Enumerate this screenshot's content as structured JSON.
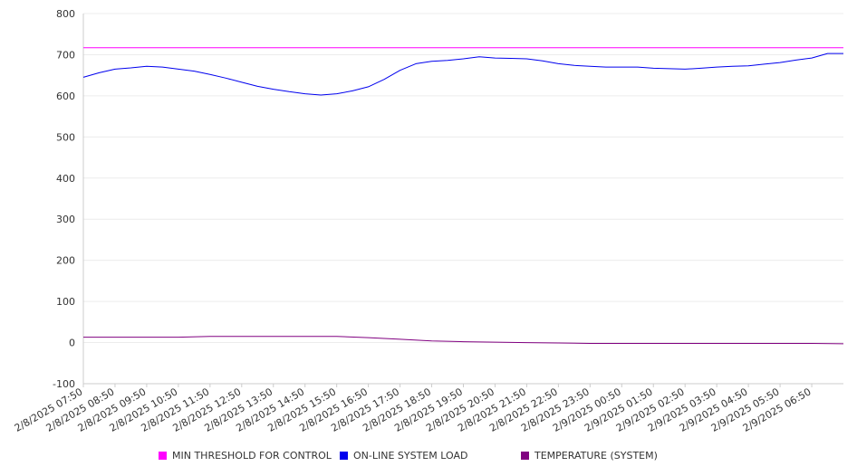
{
  "chart_data": {
    "type": "line",
    "title": "",
    "xlabel": "",
    "ylabel": "",
    "ylim": [
      -100,
      800
    ],
    "yticks": [
      -100,
      0,
      100,
      200,
      300,
      400,
      500,
      600,
      700,
      800
    ],
    "xtick_labels": [
      "2/8/2025 07:50",
      "2/8/2025 08:50",
      "2/8/2025 09:50",
      "2/8/2025 10:50",
      "2/8/2025 11:50",
      "2/8/2025 12:50",
      "2/8/2025 13:50",
      "2/8/2025 14:50",
      "2/8/2025 15:50",
      "2/8/2025 16:50",
      "2/8/2025 17:50",
      "2/8/2025 18:50",
      "2/8/2025 19:50",
      "2/8/2025 20:50",
      "2/8/2025 21:50",
      "2/8/2025 22:50",
      "2/8/2025 23:50",
      "2/9/2025 00:50",
      "2/9/2025 01:50",
      "2/9/2025 02:50",
      "2/9/2025 03:50",
      "2/9/2025 04:50",
      "2/9/2025 05:50",
      "2/9/2025 06:50"
    ],
    "x_end": "2/9/2025 07:50",
    "grid": true,
    "legend_position": "bottom",
    "series": [
      {
        "name": "MIN THRESHOLD FOR CONTROL",
        "color": "#ff00ff",
        "x": [
          "2/8/2025 07:50",
          "2/9/2025 07:50"
        ],
        "values": [
          717,
          717
        ]
      },
      {
        "name": "ON-LINE SYSTEM LOAD",
        "color": "#0000ee",
        "x": [
          "2/8/2025 07:50",
          "2/8/2025 08:20",
          "2/8/2025 08:50",
          "2/8/2025 09:20",
          "2/8/2025 09:50",
          "2/8/2025 10:20",
          "2/8/2025 10:50",
          "2/8/2025 11:20",
          "2/8/2025 11:50",
          "2/8/2025 12:20",
          "2/8/2025 12:50",
          "2/8/2025 13:20",
          "2/8/2025 13:50",
          "2/8/2025 14:20",
          "2/8/2025 14:50",
          "2/8/2025 15:20",
          "2/8/2025 15:50",
          "2/8/2025 16:20",
          "2/8/2025 16:50",
          "2/8/2025 17:20",
          "2/8/2025 17:50",
          "2/8/2025 18:20",
          "2/8/2025 18:50",
          "2/8/2025 19:20",
          "2/8/2025 19:50",
          "2/8/2025 20:20",
          "2/8/2025 20:50",
          "2/8/2025 21:20",
          "2/8/2025 21:50",
          "2/8/2025 22:20",
          "2/8/2025 22:50",
          "2/8/2025 23:20",
          "2/8/2025 23:50",
          "2/9/2025 00:20",
          "2/9/2025 00:50",
          "2/9/2025 01:20",
          "2/9/2025 01:50",
          "2/9/2025 02:20",
          "2/9/2025 02:50",
          "2/9/2025 03:20",
          "2/9/2025 03:50",
          "2/9/2025 04:20",
          "2/9/2025 04:50",
          "2/9/2025 05:20",
          "2/9/2025 05:50",
          "2/9/2025 06:20",
          "2/9/2025 06:50",
          "2/9/2025 07:20",
          "2/9/2025 07:50"
        ],
        "values": [
          645,
          656,
          665,
          668,
          672,
          670,
          665,
          660,
          652,
          643,
          633,
          623,
          616,
          610,
          605,
          602,
          605,
          612,
          622,
          640,
          662,
          678,
          684,
          686,
          690,
          695,
          692,
          691,
          690,
          685,
          678,
          674,
          672,
          670,
          670,
          670,
          667,
          666,
          665,
          667,
          670,
          672,
          673,
          677,
          681,
          687,
          692,
          703,
          703
        ]
      },
      {
        "name": "TEMPERATURE (SYSTEM)",
        "color": "#800080",
        "x": [
          "2/8/2025 07:50",
          "2/8/2025 09:50",
          "2/8/2025 10:50",
          "2/8/2025 11:50",
          "2/8/2025 12:50",
          "2/8/2025 13:50",
          "2/8/2025 14:50",
          "2/8/2025 15:50",
          "2/8/2025 16:50",
          "2/8/2025 17:50",
          "2/8/2025 18:50",
          "2/8/2025 19:50",
          "2/8/2025 20:50",
          "2/8/2025 21:50",
          "2/8/2025 22:50",
          "2/8/2025 23:50",
          "2/9/2025 01:50",
          "2/9/2025 03:50",
          "2/9/2025 05:50",
          "2/9/2025 06:50",
          "2/9/2025 07:50"
        ],
        "values": [
          13,
          13,
          13,
          15,
          15,
          15,
          15,
          15,
          12,
          8,
          4,
          2,
          1,
          0,
          -1,
          -2,
          -2,
          -2,
          -2,
          -2,
          -3
        ]
      }
    ]
  }
}
